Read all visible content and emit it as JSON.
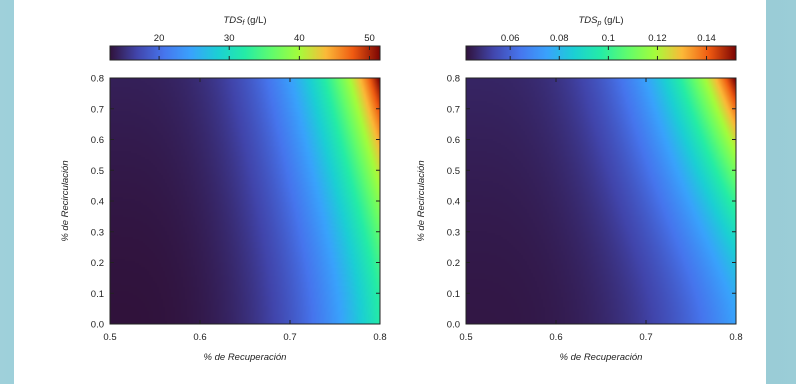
{
  "chart_data": [
    {
      "type": "heatmap",
      "colorbar_title": "TDS",
      "colorbar_subscript": "f",
      "colorbar_unit": "(g/L)",
      "colorbar_range": [
        13,
        51.5
      ],
      "colorbar_ticks": [
        20,
        30,
        40,
        50
      ],
      "colorbar_tick_labels": [
        "20",
        "30",
        "40",
        "50"
      ],
      "colormap": "turbo",
      "xlabel": "% de Recuperación",
      "ylabel": "% de Recirculación",
      "xlim": [
        0.5,
        0.8
      ],
      "ylim": [
        0.0,
        0.8
      ],
      "x_ticks": [
        0.5,
        0.6,
        0.7,
        0.8
      ],
      "x_tick_labels": [
        "0.5",
        "0.6",
        "0.7",
        "0.8"
      ],
      "y_ticks": [
        0.0,
        0.1,
        0.2,
        0.3,
        0.4,
        0.5,
        0.6,
        0.7,
        0.8
      ],
      "y_tick_labels": [
        "0.0",
        "0.1",
        "0.2",
        "0.3",
        "0.4",
        "0.5",
        "0.6",
        "0.7",
        "0.8"
      ],
      "corner_values": {
        "x0.5_y0.0": 13,
        "x0.8_y0.0": 32,
        "x0.5_y0.8": 14,
        "x0.8_y0.8": 51.5
      },
      "gradient_exponents": [
        3.2,
        1.6
      ]
    },
    {
      "type": "heatmap",
      "colorbar_title": "TDS",
      "colorbar_subscript": "p",
      "colorbar_unit": "(g/L)",
      "colorbar_range": [
        0.042,
        0.152
      ],
      "colorbar_ticks": [
        0.06,
        0.08,
        0.1,
        0.12,
        0.14
      ],
      "colorbar_tick_labels": [
        "0.06",
        "0.08",
        "0.1",
        "0.12",
        "0.14"
      ],
      "colormap": "turbo",
      "xlabel": "% de Recuperación",
      "ylabel": "% de Recirculación",
      "xlim": [
        0.5,
        0.8
      ],
      "ylim": [
        0.0,
        0.8
      ],
      "x_ticks": [
        0.5,
        0.6,
        0.7,
        0.8
      ],
      "x_tick_labels": [
        "0.5",
        "0.6",
        "0.7",
        "0.8"
      ],
      "y_ticks": [
        0.0,
        0.1,
        0.2,
        0.3,
        0.4,
        0.5,
        0.6,
        0.7,
        0.8
      ],
      "y_tick_labels": [
        "0.0",
        "0.1",
        "0.2",
        "0.3",
        "0.4",
        "0.5",
        "0.6",
        "0.7",
        "0.8"
      ],
      "corner_values": {
        "x0.5_y0.0": 0.043,
        "x0.8_y0.0": 0.075,
        "x0.5_y0.8": 0.046,
        "x0.8_y0.8": 0.152
      },
      "gradient_exponents": [
        3.2,
        1.6
      ]
    }
  ]
}
